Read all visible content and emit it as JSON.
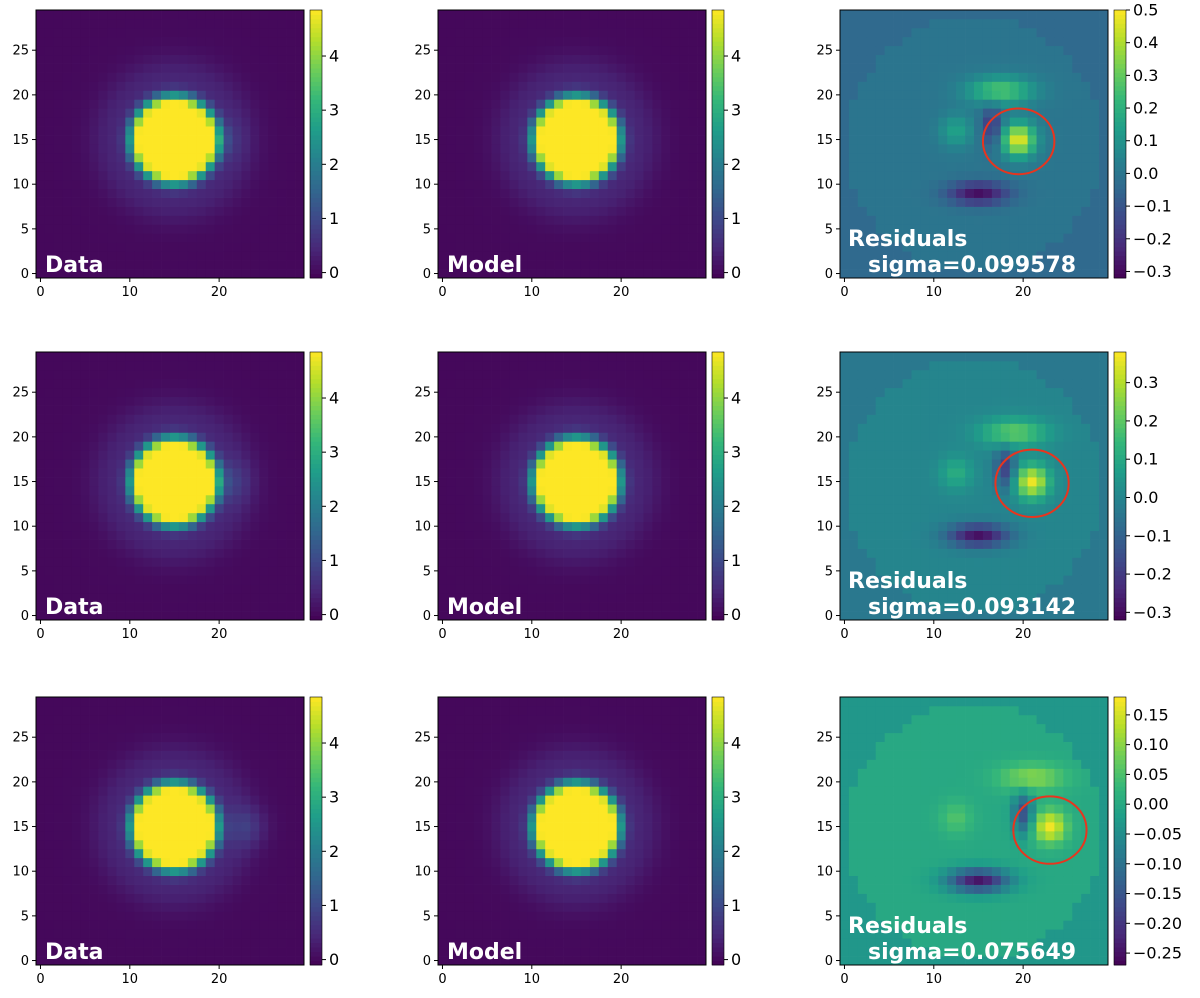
{
  "chart_data": {
    "type": "heatmap",
    "layout": {
      "rows": 3,
      "columns": [
        "Data",
        "Model",
        "Residuals"
      ]
    },
    "axes": {
      "x_ticks": [
        0,
        10,
        20
      ],
      "y_ticks": [
        0,
        5,
        10,
        15,
        20,
        25
      ],
      "xlim": [
        -0.5,
        29.5
      ],
      "ylim": [
        -0.5,
        29.5
      ],
      "grid": false
    },
    "colormap": "viridis",
    "colormap_stops": [
      "#440154",
      "#482878",
      "#3e4989",
      "#31688e",
      "#26828e",
      "#1f9e89",
      "#35b779",
      "#6ece58",
      "#b5de2b",
      "#fde725"
    ],
    "annotation_color": "#e8351e",
    "panels": [
      {
        "row": 0,
        "kind": "data",
        "label": "Data",
        "colorbar_ticks": [
          "0",
          "1",
          "2",
          "3",
          "4"
        ],
        "vmin": -0.1,
        "vmax": 4.85,
        "source_center": [
          15.0,
          15.0
        ],
        "companion": [
          20.0,
          15.0
        ]
      },
      {
        "row": 0,
        "kind": "model",
        "label": "Model",
        "colorbar_ticks": [
          "0",
          "1",
          "2",
          "3",
          "4"
        ],
        "vmin": -0.1,
        "vmax": 4.85,
        "source_center": [
          15.0,
          15.0
        ]
      },
      {
        "row": 0,
        "kind": "residual",
        "label": "Residuals",
        "sigma_text": "sigma=0.099578",
        "colorbar_ticks": [
          "0.5",
          "0.4",
          "0.3",
          "0.2",
          "0.1",
          "0.0",
          "−0.1",
          "−0.2",
          "−0.3"
        ],
        "vmin": -0.32,
        "vmax": 0.5,
        "companion": [
          19.5,
          15.0
        ],
        "circle_center": [
          19.5,
          14.8
        ],
        "circle_radius": 4.0
      },
      {
        "row": 1,
        "kind": "data",
        "label": "Data",
        "colorbar_ticks": [
          "0",
          "1",
          "2",
          "3",
          "4"
        ],
        "vmin": -0.1,
        "vmax": 4.85,
        "source_center": [
          15.0,
          15.0
        ],
        "companion": [
          21.0,
          15.0
        ]
      },
      {
        "row": 1,
        "kind": "model",
        "label": "Model",
        "colorbar_ticks": [
          "0",
          "1",
          "2",
          "3",
          "4"
        ],
        "vmin": -0.1,
        "vmax": 4.85,
        "source_center": [
          15.0,
          15.0
        ]
      },
      {
        "row": 1,
        "kind": "residual",
        "label": "Residuals",
        "sigma_text": "sigma=0.093142",
        "colorbar_ticks": [
          "0.3",
          "0.2",
          "0.1",
          "0.0",
          "−0.1",
          "−0.2",
          "−0.3"
        ],
        "vmin": -0.32,
        "vmax": 0.38,
        "companion": [
          21.0,
          15.0
        ],
        "circle_center": [
          21.0,
          14.8
        ],
        "circle_radius": 4.1
      },
      {
        "row": 2,
        "kind": "data",
        "label": "Data",
        "colorbar_ticks": [
          "0",
          "1",
          "2",
          "3",
          "4"
        ],
        "vmin": -0.1,
        "vmax": 4.85,
        "source_center": [
          15.0,
          15.0
        ],
        "companion": [
          23.0,
          15.0
        ]
      },
      {
        "row": 2,
        "kind": "model",
        "label": "Model",
        "colorbar_ticks": [
          "0",
          "1",
          "2",
          "3",
          "4"
        ],
        "vmin": -0.1,
        "vmax": 4.85,
        "source_center": [
          15.0,
          15.0
        ]
      },
      {
        "row": 2,
        "kind": "residual",
        "label": "Residuals",
        "sigma_text": "sigma=0.075649",
        "colorbar_ticks": [
          "0.15",
          "0.10",
          "0.05",
          "0.00",
          "−0.05",
          "−0.10",
          "−0.15",
          "−0.20",
          "−0.25"
        ],
        "vmin": -0.27,
        "vmax": 0.18,
        "companion": [
          23.0,
          15.0
        ],
        "circle_center": [
          23.0,
          14.6
        ],
        "circle_radius": 4.1
      }
    ]
  }
}
